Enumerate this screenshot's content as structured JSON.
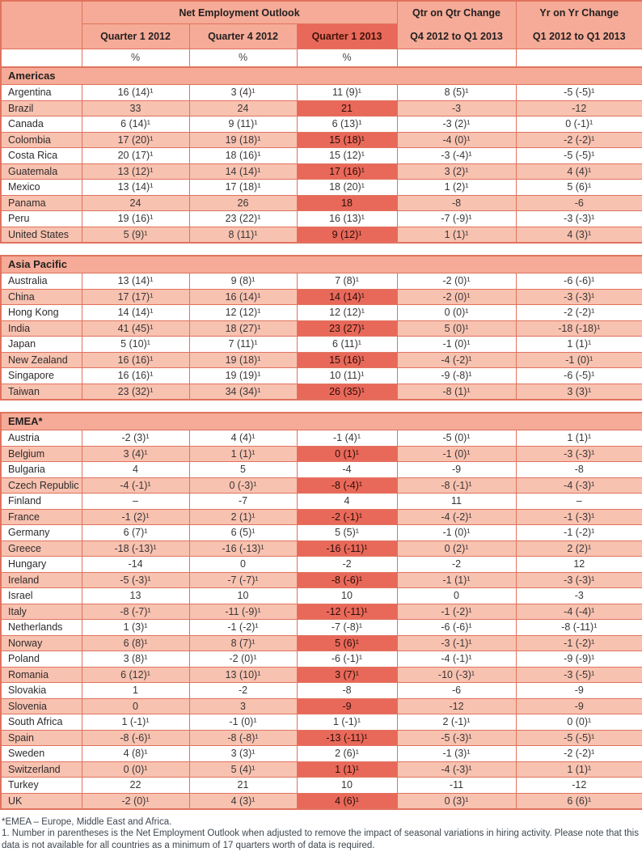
{
  "colors": {
    "highlight": "#e8695a",
    "header_bg": "#f5ab97",
    "stripe_bg": "#f8c2b0",
    "border": "#e0735e"
  },
  "table": {
    "header": {
      "group_label": "Net Employment Outlook",
      "qtr_change": {
        "line1": "Qtr on Qtr Change",
        "line2": "Q4 2012 to Q1 2013"
      },
      "yr_change": {
        "line1": "Yr on Yr Change",
        "line2": "Q1 2012 to Q1 2013"
      },
      "col_q1_2012": "Quarter 1 2012",
      "col_q4_2012": "Quarter 4 2012",
      "col_q1_2013": "Quarter 1 2013",
      "unit": "%"
    },
    "sections": [
      {
        "region": "Americas",
        "rows": [
          [
            "Argentina",
            "16 (14)¹",
            "3 (4)¹",
            "11 (9)¹",
            "8 (5)¹",
            "-5 (-5)¹"
          ],
          [
            "Brazil",
            "33",
            "24",
            "21",
            "-3",
            "-12"
          ],
          [
            "Canada",
            "6 (14)¹",
            "9 (11)¹",
            "6 (13)¹",
            "-3 (2)¹",
            "0 (-1)¹"
          ],
          [
            "Colombia",
            "17 (20)¹",
            "19 (18)¹",
            "15 (18)¹",
            "-4 (0)¹",
            "-2 (-2)¹"
          ],
          [
            "Costa Rica",
            "20 (17)¹",
            "18 (16)¹",
            "15 (12)¹",
            "-3 (-4)¹",
            "-5 (-5)¹"
          ],
          [
            "Guatemala",
            "13 (12)¹",
            "14 (14)¹",
            "17 (16)¹",
            "3 (2)¹",
            "4 (4)¹"
          ],
          [
            "Mexico",
            "13 (14)¹",
            "17 (18)¹",
            "18 (20)¹",
            "1 (2)¹",
            "5 (6)¹"
          ],
          [
            "Panama",
            "24",
            "26",
            "18",
            "-8",
            "-6"
          ],
          [
            "Peru",
            "19 (16)¹",
            "23 (22)¹",
            "16 (13)¹",
            "-7 (-9)¹",
            "-3 (-3)¹"
          ],
          [
            "United States",
            "5 (9)¹",
            "8 (11)¹",
            "9 (12)¹",
            "1 (1)¹",
            "4 (3)¹"
          ]
        ]
      },
      {
        "region": "Asia Pacific",
        "rows": [
          [
            "Australia",
            "13 (14)¹",
            "9 (8)¹",
            "7 (8)¹",
            "-2 (0)¹",
            "-6 (-6)¹"
          ],
          [
            "China",
            "17 (17)¹",
            "16 (14)¹",
            "14 (14)¹",
            "-2 (0)¹",
            "-3 (-3)¹"
          ],
          [
            "Hong Kong",
            "14 (14)¹",
            "12 (12)¹",
            "12 (12)¹",
            "0 (0)¹",
            "-2 (-2)¹"
          ],
          [
            "India",
            "41 (45)¹",
            "18 (27)¹",
            "23 (27)¹",
            "5 (0)¹",
            "-18 (-18)¹"
          ],
          [
            "Japan",
            "5 (10)¹",
            "7 (11)¹",
            "6 (11)¹",
            "-1 (0)¹",
            "1 (1)¹"
          ],
          [
            "New Zealand",
            "16 (16)¹",
            "19 (18)¹",
            "15 (16)¹",
            "-4 (-2)¹",
            "-1 (0)¹"
          ],
          [
            "Singapore",
            "16 (16)¹",
            "19 (19)¹",
            "10 (11)¹",
            "-9 (-8)¹",
            "-6 (-5)¹"
          ],
          [
            "Taiwan",
            "23 (32)¹",
            "34 (34)¹",
            "26 (35)¹",
            "-8 (1)¹",
            "3 (3)¹"
          ]
        ]
      },
      {
        "region": "EMEA*",
        "rows": [
          [
            "Austria",
            "-2 (3)¹",
            "4 (4)¹",
            "-1 (4)¹",
            "-5 (0)¹",
            "1 (1)¹"
          ],
          [
            "Belgium",
            "3 (4)¹",
            "1 (1)¹",
            "0 (1)¹",
            "-1 (0)¹",
            "-3 (-3)¹"
          ],
          [
            "Bulgaria",
            "4",
            "5",
            "-4",
            "-9",
            "-8"
          ],
          [
            "Czech Republic",
            "-4 (-1)¹",
            "0 (-3)¹",
            "-8 (-4)¹",
            "-8 (-1)¹",
            "-4 (-3)¹"
          ],
          [
            "Finland",
            "–",
            "-7",
            "4",
            "11",
            "–"
          ],
          [
            "France",
            "-1 (2)¹",
            "2 (1)¹",
            "-2 (-1)¹",
            "-4 (-2)¹",
            "-1 (-3)¹"
          ],
          [
            "Germany",
            "6 (7)¹",
            "6 (5)¹",
            "5 (5)¹",
            "-1 (0)¹",
            "-1 (-2)¹"
          ],
          [
            "Greece",
            "-18 (-13)¹",
            "-16 (-13)¹",
            "-16 (-11)¹",
            "0 (2)¹",
            "2 (2)¹"
          ],
          [
            "Hungary",
            "-14",
            "0",
            "-2",
            "-2",
            "12"
          ],
          [
            "Ireland",
            "-5 (-3)¹",
            "-7 (-7)¹",
            "-8 (-6)¹",
            "-1 (1)¹",
            "-3 (-3)¹"
          ],
          [
            "Israel",
            "13",
            "10",
            "10",
            "0",
            "-3"
          ],
          [
            "Italy",
            "-8 (-7)¹",
            "-11 (-9)¹",
            "-12 (-11)¹",
            "-1 (-2)¹",
            "-4 (-4)¹"
          ],
          [
            "Netherlands",
            "1 (3)¹",
            "-1 (-2)¹",
            "-7 (-8)¹",
            "-6 (-6)¹",
            "-8 (-11)¹"
          ],
          [
            "Norway",
            "6 (8)¹",
            "8 (7)¹",
            "5 (6)¹",
            "-3 (-1)¹",
            "-1 (-2)¹"
          ],
          [
            "Poland",
            "3 (8)¹",
            "-2 (0)¹",
            "-6 (-1)¹",
            "-4 (-1)¹",
            "-9 (-9)¹"
          ],
          [
            "Romania",
            "6 (12)¹",
            "13 (10)¹",
            "3 (7)¹",
            "-10 (-3)¹",
            "-3 (-5)¹"
          ],
          [
            "Slovakia",
            "1",
            "-2",
            "-8",
            "-6",
            "-9"
          ],
          [
            "Slovenia",
            "0",
            "3",
            "-9",
            "-12",
            "-9"
          ],
          [
            "South Africa",
            "1 (-1)¹",
            "-1 (0)¹",
            "1 (-1)¹",
            "2 (-1)¹",
            "0 (0)¹"
          ],
          [
            "Spain",
            "-8 (-6)¹",
            "-8 (-8)¹",
            "-13 (-11)¹",
            "-5 (-3)¹",
            "-5 (-5)¹"
          ],
          [
            "Sweden",
            "4 (8)¹",
            "3 (3)¹",
            "2 (6)¹",
            "-1 (3)¹",
            "-2 (-2)¹"
          ],
          [
            "Switzerland",
            "0 (0)¹",
            "5 (4)¹",
            "1 (1)¹",
            "-4 (-3)¹",
            "1 (1)¹"
          ],
          [
            "Turkey",
            "22",
            "21",
            "10",
            "-11",
            "-12"
          ],
          [
            "UK",
            "-2 (0)¹",
            "4 (3)¹",
            "4 (6)¹",
            "0 (3)¹",
            "6 (6)¹"
          ]
        ]
      }
    ]
  },
  "footnotes": [
    "*EMEA – Europe, Middle East and Africa.",
    "1. Number in parentheses is the Net Employment Outlook when adjusted to remove the impact of seasonal variations in hiring activity. Please note that this data is not available for all countries as a minimum of 17 quarters worth of data is required."
  ]
}
